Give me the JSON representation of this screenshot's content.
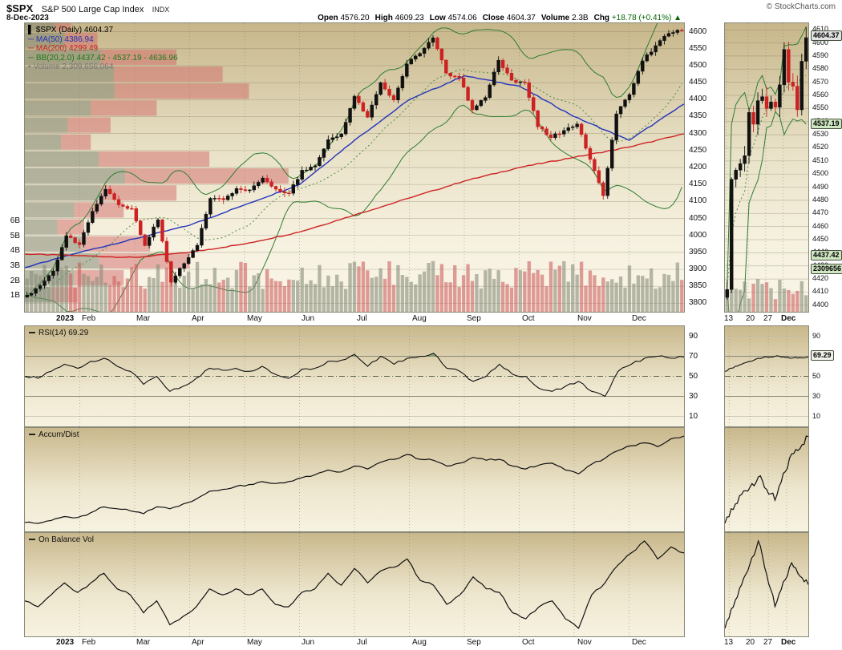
{
  "header": {
    "symbol": "$SPX",
    "name": "S&P 500 Large Cap Index",
    "exchange": "INDX",
    "date": "8-Dec-2023",
    "copyright": "© StockCharts.com",
    "quote": [
      {
        "label": "Open",
        "value": "4576.20"
      },
      {
        "label": "High",
        "value": "4609.23"
      },
      {
        "label": "Low",
        "value": "4574.06"
      },
      {
        "label": "Close",
        "value": "4604.37"
      },
      {
        "label": "Volume",
        "value": "2.3B"
      },
      {
        "label": "Chg",
        "value": "+18.78 (+0.41%) ▲",
        "color": "#006600"
      }
    ]
  },
  "chart_data": [
    {
      "id": "price",
      "type": "candlestick",
      "title": "$SPX (Daily) 4604.37",
      "legend": [
        {
          "icon": "▌",
          "text": "$SPX (Daily) 4604.37",
          "color": "#000000"
        },
        {
          "icon": "─",
          "text": "MA(50) 4386.94",
          "color": "#2233bb"
        },
        {
          "icon": "─",
          "text": "MA(200) 4299.49",
          "color": "#cc2222"
        },
        {
          "icon": "─",
          "text": "BB(20,2.0) 4437.42 - 4537.19 - 4636.96",
          "color": "#1a7a1a"
        },
        {
          "icon": "▪",
          "text": "Volume 2,309,656,064",
          "color": "#777777"
        }
      ],
      "x_labels": [
        "2023",
        "Feb",
        "Mar",
        "Apr",
        "May",
        "Jun",
        "Jul",
        "Aug",
        "Sep",
        "Oct",
        "Nov",
        "Dec"
      ],
      "ylim": [
        3775,
        4625
      ],
      "y_ticks": [
        3800,
        3850,
        3900,
        3950,
        4000,
        4050,
        4100,
        4150,
        4200,
        4250,
        4300,
        4350,
        4400,
        4450,
        4500,
        4550,
        4600
      ],
      "volume_axis_ticks": [
        "1B",
        "2B",
        "3B",
        "4B",
        "5B",
        "6B"
      ],
      "weekly_close": [
        3824,
        3852,
        3895,
        3999,
        3973,
        4071,
        4136,
        4090,
        4079,
        3970,
        4046,
        3862,
        3917,
        3971,
        4109,
        4105,
        4138,
        4134,
        4169,
        4136,
        4124,
        4192,
        4205,
        4282,
        4299,
        4410,
        4348,
        4450,
        4399,
        4505,
        4536,
        4582,
        4478,
        4464,
        4370,
        4406,
        4516,
        4457,
        4450,
        4320,
        4288,
        4309,
        4328,
        4224,
        4117,
        4358,
        4415,
        4514,
        4559,
        4595,
        4604
      ],
      "ma50": [
        3905,
        3950,
        3990,
        4030,
        4090,
        4150,
        4280,
        4400,
        4470,
        4440,
        4350,
        4280,
        4387
      ],
      "ma200": [
        3945,
        3940,
        3935,
        3950,
        3975,
        4010,
        4060,
        4110,
        4160,
        4200,
        4230,
        4260,
        4299
      ],
      "bollinger": {
        "window": 20,
        "mult": 2.0,
        "last_lower": 4437.42,
        "last_mid": 4537.19,
        "last_upper": 4636.96
      },
      "last_volume": "2,309,656,064",
      "volume_by_price": [
        {
          "price": 4600,
          "width": 0.07,
          "red": 0.35
        },
        {
          "price": 4550,
          "width": 0.11,
          "red": 0.45
        },
        {
          "price": 4500,
          "width": 0.23,
          "red": 0.5
        },
        {
          "price": 4450,
          "width": 0.3,
          "red": 0.55
        },
        {
          "price": 4400,
          "width": 0.34,
          "red": 0.6
        },
        {
          "price": 4350,
          "width": 0.2,
          "red": 0.5
        },
        {
          "price": 4300,
          "width": 0.13,
          "red": 0.5
        },
        {
          "price": 4250,
          "width": 0.1,
          "red": 0.45
        },
        {
          "price": 4200,
          "width": 0.28,
          "red": 0.6
        },
        {
          "price": 4150,
          "width": 0.4,
          "red": 0.62
        },
        {
          "price": 4100,
          "width": 0.23,
          "red": 0.5
        },
        {
          "price": 4050,
          "width": 0.15,
          "red": 0.5
        },
        {
          "price": 4000,
          "width": 0.09,
          "red": 0.45
        },
        {
          "price": 3950,
          "width": 0.19,
          "red": 0.55
        },
        {
          "price": 3900,
          "width": 0.25,
          "red": 0.55
        },
        {
          "price": 3850,
          "width": 0.15,
          "red": 0.5
        },
        {
          "price": 3800,
          "width": 0.08,
          "red": 0.5
        }
      ]
    },
    {
      "id": "rsi",
      "type": "line",
      "label": "RSI(14)",
      "value": 69.29,
      "display": "RSI(14) 69.29",
      "y_ticks": [
        90,
        70,
        50,
        30,
        10
      ],
      "levels": {
        "overbought": 70,
        "mid": 50,
        "oversold": 30
      },
      "values": [
        50,
        48,
        55,
        62,
        58,
        65,
        68,
        60,
        55,
        42,
        50,
        35,
        40,
        48,
        58,
        56,
        58,
        55,
        60,
        52,
        48,
        57,
        58,
        65,
        66,
        72,
        60,
        70,
        62,
        68,
        70,
        73,
        58,
        55,
        45,
        50,
        62,
        52,
        50,
        38,
        35,
        40,
        45,
        35,
        30,
        55,
        62,
        68,
        70,
        68,
        69.29
      ],
      "callout": "69.29"
    },
    {
      "id": "accum_dist",
      "type": "line",
      "label": "Accum/Dist",
      "values_norm": [
        0.08,
        0.07,
        0.1,
        0.14,
        0.13,
        0.18,
        0.24,
        0.22,
        0.2,
        0.17,
        0.24,
        0.22,
        0.27,
        0.32,
        0.4,
        0.42,
        0.45,
        0.47,
        0.5,
        0.48,
        0.5,
        0.54,
        0.57,
        0.62,
        0.6,
        0.66,
        0.63,
        0.7,
        0.73,
        0.78,
        0.73,
        0.72,
        0.66,
        0.69,
        0.75,
        0.72,
        0.73,
        0.66,
        0.63,
        0.67,
        0.69,
        0.62,
        0.58,
        0.68,
        0.74,
        0.82,
        0.87,
        0.9,
        0.86,
        0.94,
        0.97
      ]
    },
    {
      "id": "obv",
      "type": "line",
      "label": "On Balance Vol",
      "values_norm": [
        0.45,
        0.4,
        0.5,
        0.6,
        0.52,
        0.6,
        0.68,
        0.55,
        0.5,
        0.35,
        0.45,
        0.25,
        0.32,
        0.4,
        0.55,
        0.5,
        0.55,
        0.5,
        0.55,
        0.42,
        0.4,
        0.52,
        0.55,
        0.68,
        0.58,
        0.72,
        0.6,
        0.7,
        0.73,
        0.8,
        0.62,
        0.58,
        0.42,
        0.5,
        0.65,
        0.55,
        0.52,
        0.35,
        0.3,
        0.4,
        0.45,
        0.3,
        0.22,
        0.5,
        0.6,
        0.75,
        0.85,
        0.95,
        0.8,
        0.9,
        0.85
      ]
    },
    {
      "id": "zoom",
      "type": "candlestick",
      "x_labels": [
        "13",
        "20",
        "27",
        "Dec"
      ],
      "x_label_idx": [
        0,
        5,
        9,
        13
      ],
      "ylim": [
        4395,
        4615
      ],
      "y_ticks": [
        4400,
        4410,
        4420,
        4430,
        4440,
        4450,
        4460,
        4470,
        4480,
        4490,
        4500,
        4510,
        4520,
        4530,
        4540,
        4550,
        4560,
        4570,
        4580,
        4590,
        4600,
        4610
      ],
      "closes": [
        4412,
        4496,
        4503,
        4508,
        4514,
        4547,
        4538,
        4556,
        4559,
        4550,
        4555,
        4551,
        4568,
        4595,
        4570,
        4567,
        4549,
        4586,
        4604
      ],
      "callouts": [
        {
          "text": "4604.37",
          "value": 4604.37,
          "bg": "#e2e2e2"
        },
        {
          "text": "4537.19",
          "value": 4537.19,
          "bg": "#cfe6c2"
        },
        {
          "text": "4437.42",
          "value": 4437.42,
          "bg": "#cfe6c2"
        },
        {
          "text": "2309656",
          "value": 4426.5,
          "bg": "#cfe6c2"
        }
      ]
    }
  ]
}
